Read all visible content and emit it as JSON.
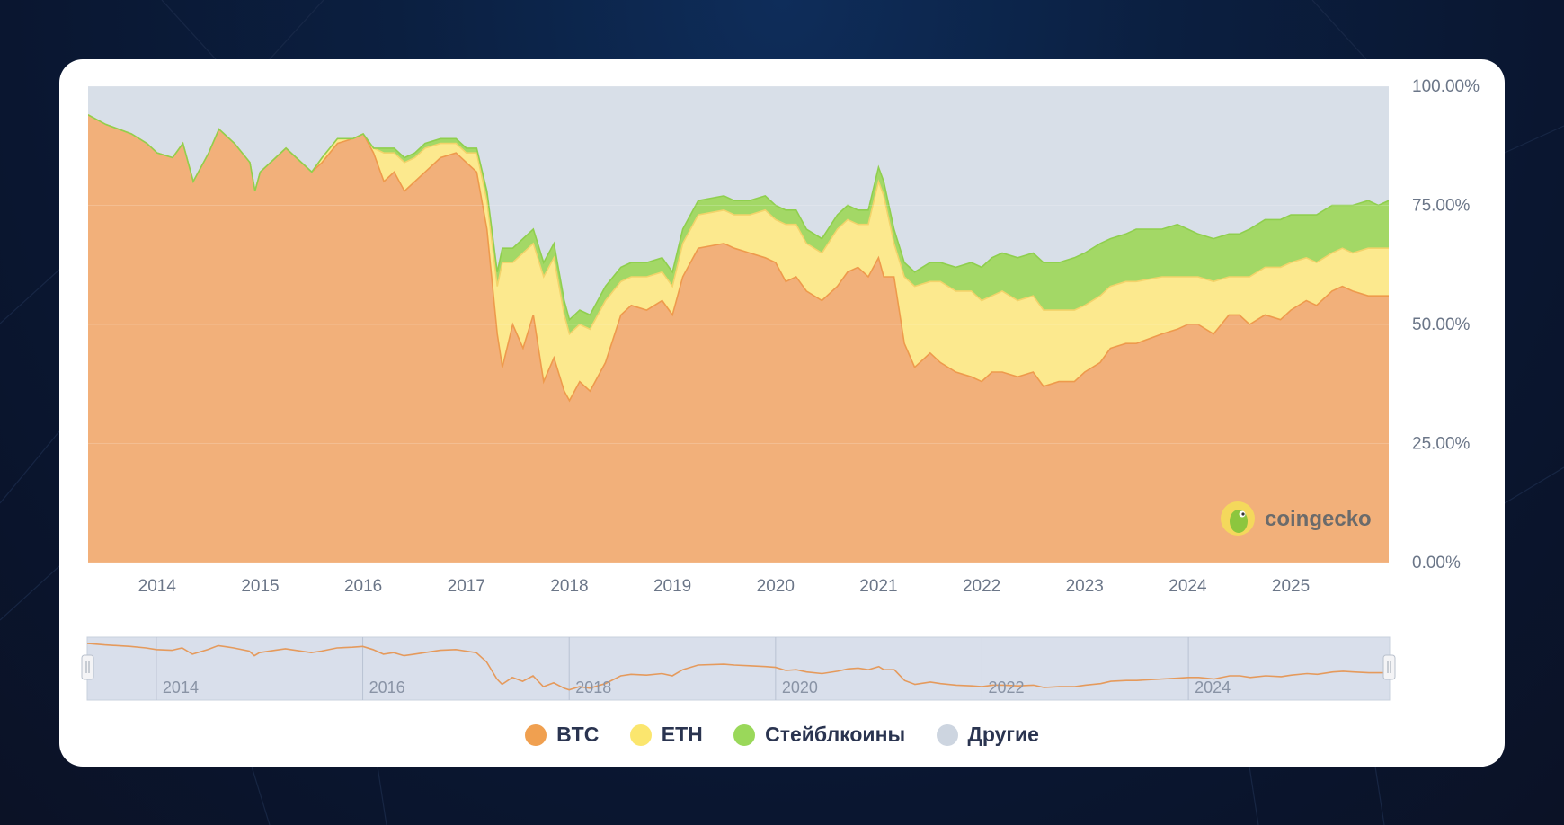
{
  "chart_data": {
    "type": "area",
    "stacked": true,
    "percent": true,
    "title": "",
    "xlabel": "",
    "ylabel": "",
    "x_range": [
      2013.33,
      2025.95
    ],
    "ylim": [
      0,
      100
    ],
    "y_ticks": [
      "100.00%",
      "75.00%",
      "50.00%",
      "25.00%",
      "0.00%"
    ],
    "x_ticks": [
      "2014",
      "2015",
      "2016",
      "2017",
      "2018",
      "2019",
      "2020",
      "2021",
      "2022",
      "2023",
      "2024",
      "2025"
    ],
    "navigator_ticks": [
      "2014",
      "2016",
      "2018",
      "2020",
      "2022",
      "2024"
    ],
    "watermark": "coingecko",
    "legend_position": "bottom",
    "x": [
      2013.33,
      2013.5,
      2013.75,
      2013.9,
      2014.0,
      2014.15,
      2014.25,
      2014.35,
      2014.5,
      2014.6,
      2014.75,
      2014.9,
      2014.95,
      2015.0,
      2015.15,
      2015.25,
      2015.5,
      2015.6,
      2015.75,
      2015.9,
      2016.0,
      2016.1,
      2016.2,
      2016.3,
      2016.4,
      2016.5,
      2016.6,
      2016.75,
      2016.9,
      2017.0,
      2017.1,
      2017.2,
      2017.3,
      2017.35,
      2017.45,
      2017.55,
      2017.65,
      2017.75,
      2017.85,
      2017.95,
      2018.0,
      2018.1,
      2018.2,
      2018.35,
      2018.5,
      2018.6,
      2018.75,
      2018.9,
      2019.0,
      2019.1,
      2019.25,
      2019.5,
      2019.6,
      2019.75,
      2019.9,
      2020.0,
      2020.1,
      2020.2,
      2020.3,
      2020.45,
      2020.6,
      2020.7,
      2020.8,
      2020.9,
      2021.0,
      2021.05,
      2021.15,
      2021.25,
      2021.35,
      2021.5,
      2021.6,
      2021.75,
      2021.9,
      2022.0,
      2022.1,
      2022.2,
      2022.35,
      2022.5,
      2022.6,
      2022.75,
      2022.9,
      2023.0,
      2023.15,
      2023.25,
      2023.4,
      2023.5,
      2023.75,
      2023.9,
      2024.0,
      2024.1,
      2024.25,
      2024.4,
      2024.5,
      2024.6,
      2024.75,
      2024.9,
      2025.0,
      2025.15,
      2025.25,
      2025.4,
      2025.5,
      2025.6,
      2025.75,
      2025.85,
      2025.95
    ],
    "series": [
      {
        "name": "BTC",
        "color": "#f2b07a",
        "values": [
          94,
          92,
          90,
          88,
          86,
          85,
          88,
          80,
          86,
          91,
          88,
          84,
          78,
          82,
          85,
          87,
          82,
          84,
          88,
          89,
          90,
          86,
          80,
          82,
          78,
          80,
          82,
          85,
          86,
          84,
          82,
          70,
          48,
          41,
          50,
          45,
          52,
          38,
          43,
          36,
          34,
          38,
          36,
          42,
          52,
          54,
          53,
          55,
          52,
          60,
          66,
          67,
          66,
          65,
          64,
          63,
          59,
          60,
          57,
          55,
          58,
          61,
          62,
          60,
          64,
          60,
          60,
          46,
          41,
          44,
          42,
          40,
          39,
          38,
          40,
          40,
          39,
          40,
          37,
          38,
          38,
          40,
          42,
          45,
          46,
          46,
          48,
          49,
          50,
          50,
          48,
          52,
          52,
          50,
          52,
          51,
          53,
          55,
          54,
          57,
          58,
          57,
          56,
          56,
          56
        ]
      },
      {
        "name": "ETH",
        "color": "#fce98e",
        "values": [
          0,
          0,
          0,
          0,
          0,
          0,
          0,
          0,
          0,
          0,
          0,
          0,
          0,
          0,
          0,
          0,
          0,
          1,
          1,
          0,
          0,
          1,
          6,
          4,
          6,
          5,
          5,
          3,
          2,
          2,
          4,
          6,
          10,
          22,
          13,
          20,
          15,
          22,
          21,
          16,
          14,
          12,
          13,
          13,
          7,
          6,
          7,
          6,
          6,
          7,
          7,
          7,
          7,
          8,
          10,
          9,
          12,
          11,
          10,
          10,
          12,
          11,
          9,
          11,
          16,
          17,
          7,
          14,
          17,
          15,
          17,
          17,
          18,
          17,
          16,
          17,
          16,
          16,
          16,
          15,
          15,
          14,
          14,
          13,
          13,
          13,
          12,
          11,
          10,
          10,
          11,
          8,
          8,
          10,
          10,
          11,
          10,
          9,
          9,
          8,
          8,
          8,
          10,
          10,
          10
        ]
      },
      {
        "name": "Стейблкоины",
        "color": "#a3d866",
        "values": [
          0,
          0,
          0,
          0,
          0,
          0,
          0,
          0,
          0,
          0,
          0,
          0,
          0,
          0,
          0,
          0,
          0,
          0,
          0,
          0,
          0,
          0,
          1,
          1,
          1,
          1,
          1,
          1,
          1,
          1,
          1,
          2,
          3,
          3,
          3,
          3,
          3,
          3,
          3,
          3,
          3,
          3,
          3,
          3,
          3,
          3,
          3,
          3,
          3,
          3,
          3,
          3,
          3,
          3,
          3,
          3,
          3,
          3,
          3,
          3,
          3,
          3,
          3,
          3,
          3,
          3,
          3,
          3,
          3,
          4,
          4,
          5,
          6,
          7,
          8,
          8,
          9,
          9,
          10,
          10,
          11,
          11,
          11,
          10,
          10,
          11,
          10,
          11,
          10,
          9,
          9,
          9,
          9,
          10,
          10,
          10,
          10,
          9,
          10,
          10,
          9,
          10,
          10,
          9,
          10
        ]
      },
      {
        "name": "Другие",
        "color": "#d8dfe8",
        "values": [
          6,
          8,
          10,
          12,
          14,
          15,
          12,
          20,
          14,
          9,
          12,
          16,
          22,
          18,
          15,
          13,
          18,
          15,
          11,
          11,
          10,
          13,
          13,
          13,
          15,
          14,
          12,
          11,
          11,
          13,
          13,
          22,
          39,
          34,
          34,
          32,
          30,
          37,
          33,
          45,
          49,
          47,
          48,
          42,
          38,
          37,
          37,
          36,
          39,
          30,
          24,
          23,
          24,
          24,
          23,
          25,
          26,
          26,
          30,
          32,
          27,
          25,
          26,
          26,
          17,
          20,
          30,
          37,
          39,
          37,
          37,
          38,
          37,
          38,
          36,
          35,
          36,
          35,
          37,
          37,
          36,
          35,
          33,
          32,
          31,
          30,
          30,
          29,
          30,
          31,
          32,
          31,
          31,
          30,
          28,
          28,
          27,
          27,
          27,
          25,
          25,
          25,
          24,
          25,
          24
        ]
      }
    ],
    "navigator_series": "BTC"
  },
  "legend": {
    "btc": "BTC",
    "eth": "ETH",
    "stable": "Стейблкоины",
    "other": "Другие"
  },
  "colors": {
    "btc": "#f2b07a",
    "btc_stroke": "#ee9a4c",
    "eth": "#fce98e",
    "stable": "#a3d866",
    "other": "#d8dfe8"
  }
}
